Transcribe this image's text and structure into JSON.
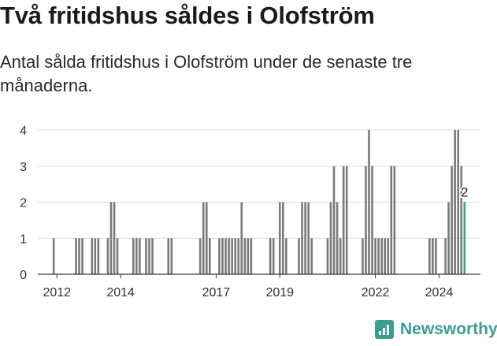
{
  "header": {
    "title": "Två fritidshus såldes i Olofström",
    "subtitle": "Antal sålda fritidshus i Olofström under de senaste tre månaderna."
  },
  "brand": {
    "name": "Newsworthy",
    "icon": "newsworthy-logo-icon"
  },
  "colors": {
    "bar": "#7a7a7a",
    "highlight": "#3a9e93",
    "grid": "#dddddd",
    "axis": "#333333"
  },
  "chart_data": {
    "type": "bar",
    "title": "",
    "xlabel": "",
    "ylabel": "",
    "ylim": [
      0,
      4
    ],
    "yticks": [
      0,
      1,
      2,
      3,
      4
    ],
    "xticks": [
      "2012",
      "2014",
      "2017",
      "2019",
      "2022",
      "2024"
    ],
    "grid": true,
    "highlight_label": "2",
    "x": [
      2011.9,
      2012.6,
      2012.7,
      2012.8,
      2013.1,
      2013.2,
      2013.3,
      2013.6,
      2013.7,
      2013.8,
      2013.9,
      2014.4,
      2014.5,
      2014.6,
      2014.8,
      2014.9,
      2015.0,
      2015.5,
      2015.6,
      2016.5,
      2016.6,
      2016.7,
      2016.8,
      2017.1,
      2017.2,
      2017.3,
      2017.4,
      2017.5,
      2017.6,
      2017.7,
      2017.8,
      2017.9,
      2018.0,
      2018.1,
      2018.7,
      2018.8,
      2019.0,
      2019.1,
      2019.2,
      2019.6,
      2019.7,
      2019.8,
      2019.9,
      2020.0,
      2020.5,
      2020.6,
      2020.7,
      2020.8,
      2020.9,
      2021.0,
      2021.1,
      2021.6,
      2021.7,
      2021.8,
      2021.9,
      2022.0,
      2022.1,
      2022.2,
      2022.3,
      2022.4,
      2022.5,
      2022.6,
      2023.7,
      2023.8,
      2023.9,
      2024.2,
      2024.3,
      2024.4,
      2024.5,
      2024.6,
      2024.7,
      2024.8
    ],
    "values": [
      1,
      1,
      1,
      1,
      1,
      1,
      1,
      1,
      2,
      2,
      1,
      1,
      1,
      1,
      1,
      1,
      1,
      1,
      1,
      1,
      2,
      2,
      1,
      1,
      1,
      1,
      1,
      1,
      1,
      1,
      2,
      1,
      1,
      1,
      1,
      1,
      2,
      2,
      1,
      1,
      2,
      2,
      2,
      1,
      1,
      2,
      3,
      2,
      1,
      3,
      3,
      1,
      3,
      4,
      3,
      1,
      1,
      1,
      1,
      1,
      3,
      3,
      1,
      1,
      1,
      1,
      2,
      3,
      4,
      4,
      3,
      2
    ]
  }
}
